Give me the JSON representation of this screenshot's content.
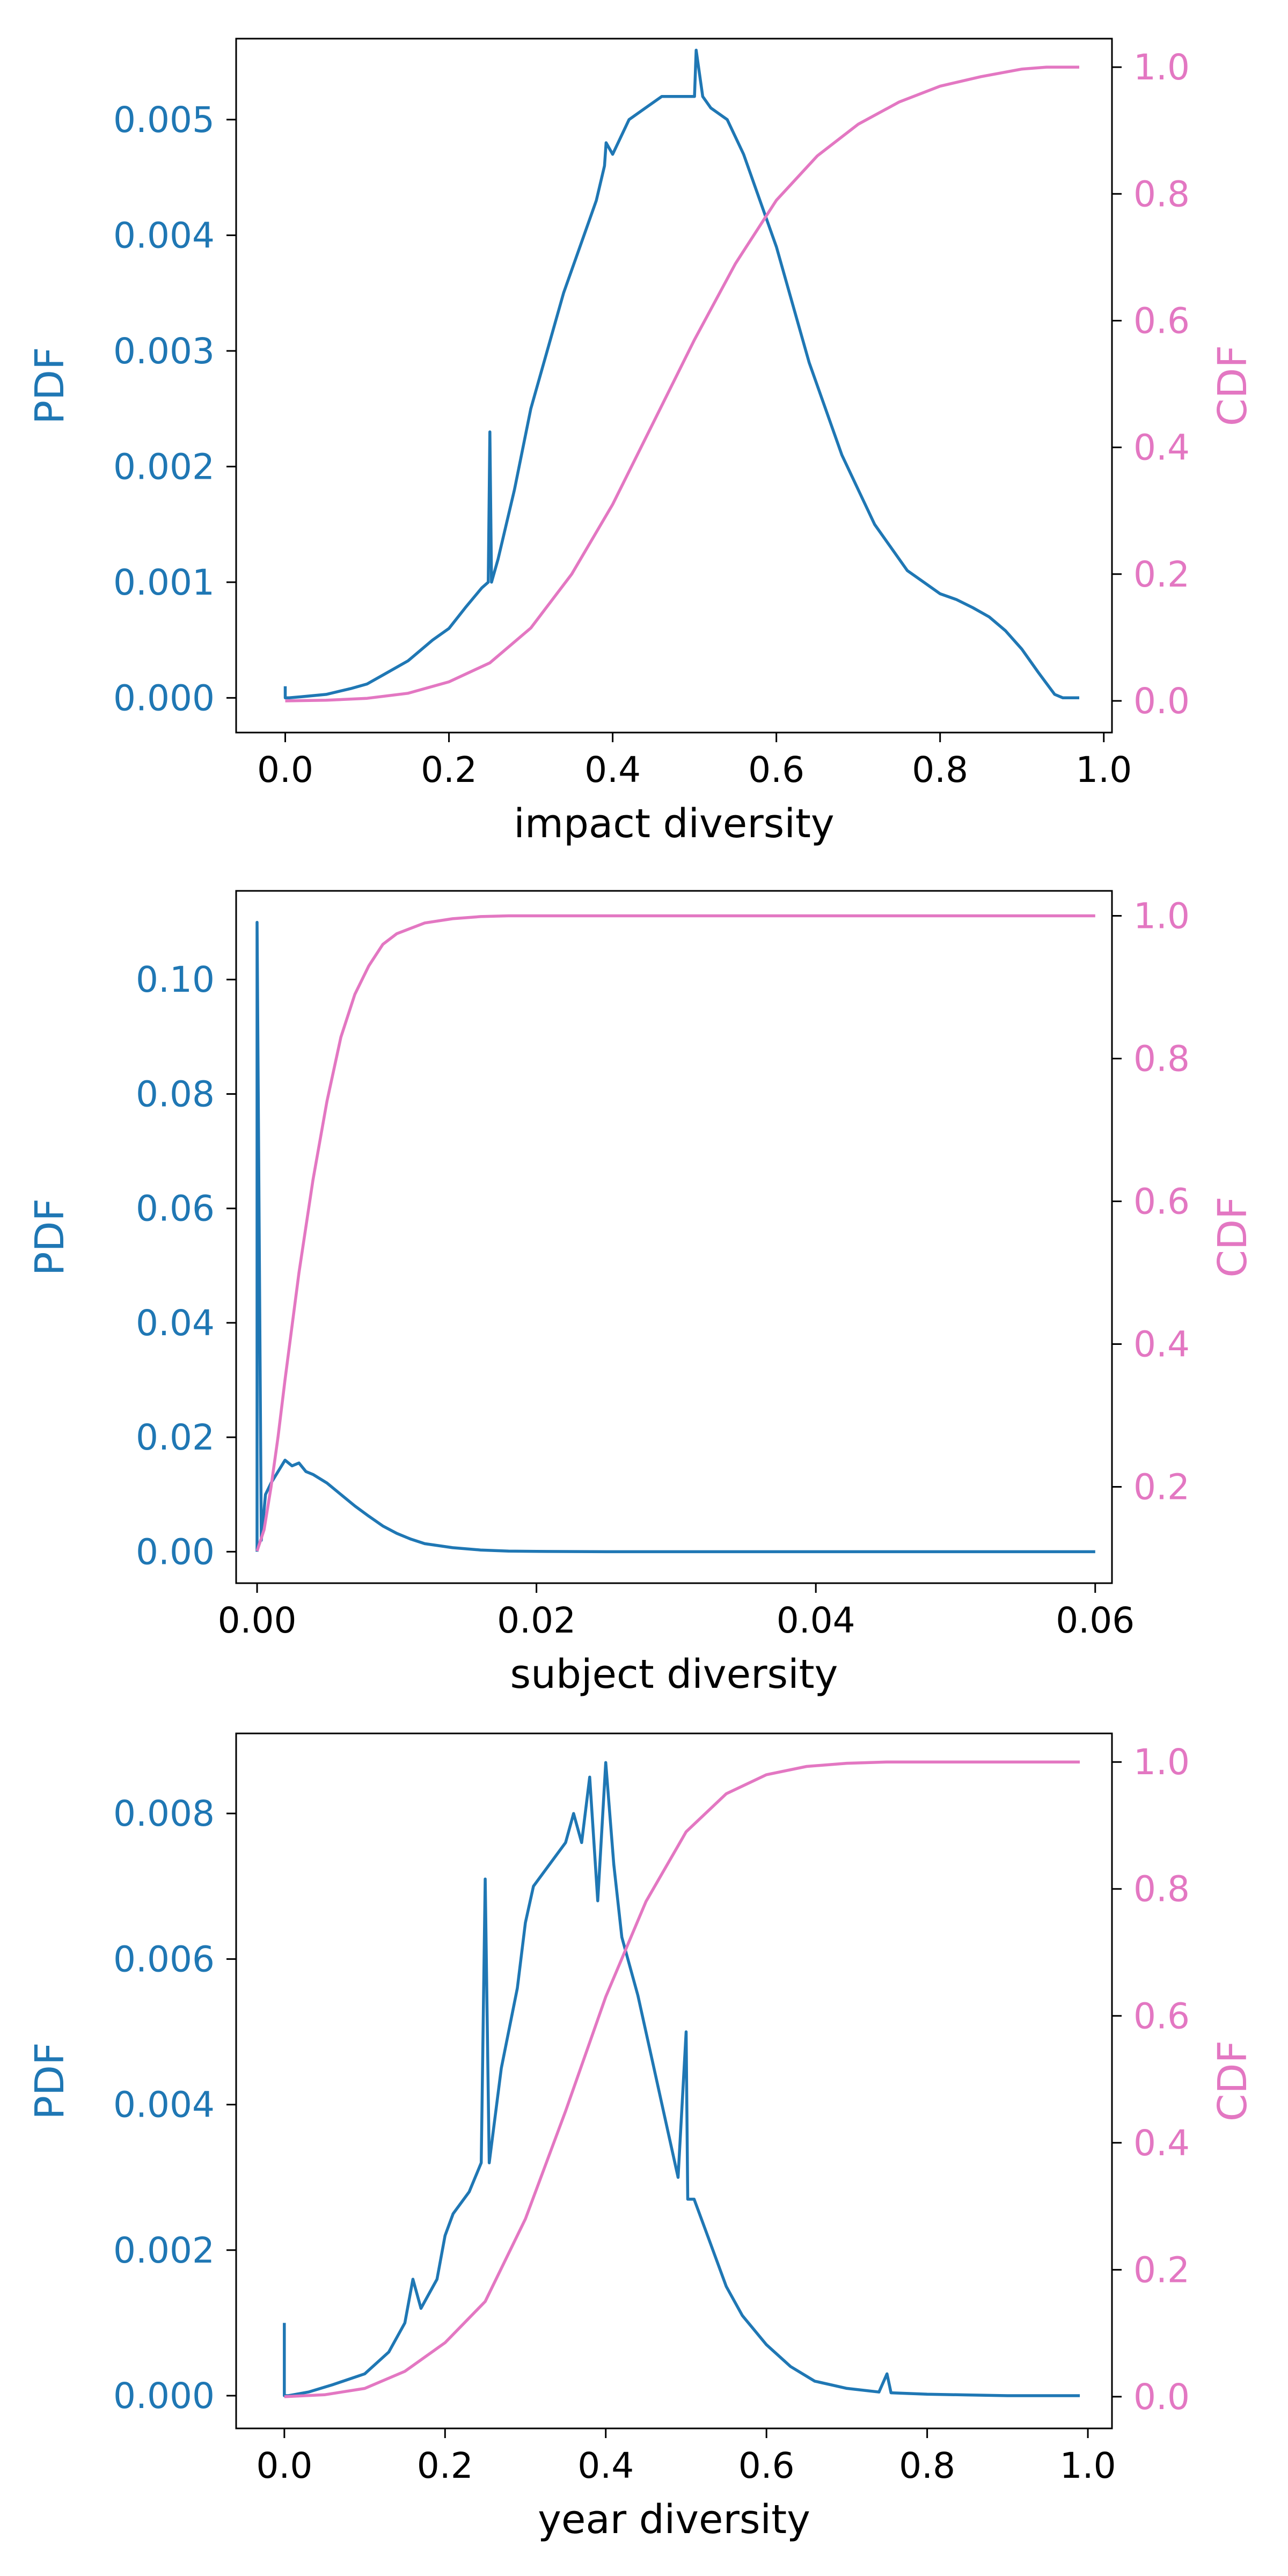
{
  "colors": {
    "pdf": "#1f77b4",
    "cdf": "#e377c2",
    "axis": "#000000"
  },
  "chart_data": [
    {
      "type": "line",
      "xlabel": "impact diversity",
      "ylabel_left": "PDF",
      "ylabel_right": "CDF",
      "xlim": [
        -0.06,
        1.01
      ],
      "ylim_left": [
        -0.0003,
        0.0057
      ],
      "ylim_right": [
        -0.05,
        1.045
      ],
      "xticks": [
        0.0,
        0.2,
        0.4,
        0.6,
        0.8,
        1.0
      ],
      "xtick_labels": [
        "0.0",
        "0.2",
        "0.4",
        "0.6",
        "0.8",
        "1.0"
      ],
      "yticks_left": [
        0.0,
        0.001,
        0.002,
        0.003,
        0.004,
        0.005
      ],
      "ytick_labels_left": [
        "0.000",
        "0.001",
        "0.002",
        "0.003",
        "0.004",
        "0.005"
      ],
      "yticks_right": [
        0.0,
        0.2,
        0.4,
        0.6,
        0.8,
        1.0
      ],
      "ytick_labels_right": [
        "0.0",
        "0.2",
        "0.4",
        "0.6",
        "0.8",
        "1.0"
      ],
      "grid": false,
      "series": [
        {
          "axis": "left",
          "x": [
            0.0,
            0.0,
            0.005,
            0.02,
            0.05,
            0.08,
            0.1,
            0.12,
            0.15,
            0.18,
            0.2,
            0.22,
            0.24,
            0.248,
            0.25,
            0.252,
            0.26,
            0.28,
            0.3,
            0.32,
            0.34,
            0.36,
            0.38,
            0.39,
            0.392,
            0.4,
            0.42,
            0.44,
            0.46,
            0.48,
            0.5,
            0.502,
            0.51,
            0.52,
            0.54,
            0.56,
            0.58,
            0.6,
            0.62,
            0.64,
            0.66,
            0.68,
            0.7,
            0.72,
            0.74,
            0.76,
            0.78,
            0.8,
            0.82,
            0.84,
            0.86,
            0.88,
            0.9,
            0.92,
            0.94,
            0.95,
            0.96,
            0.97
          ],
          "y": [
            0.0001,
            0.0,
            0.0,
            1e-05,
            3e-05,
            8e-05,
            0.00012,
            0.0002,
            0.00032,
            0.0005,
            0.0006,
            0.00078,
            0.00095,
            0.001,
            0.0023,
            0.001,
            0.0012,
            0.0018,
            0.0025,
            0.003,
            0.0035,
            0.0039,
            0.0043,
            0.0046,
            0.0048,
            0.0047,
            0.005,
            0.0051,
            0.0052,
            0.0052,
            0.0052,
            0.0056,
            0.0052,
            0.0051,
            0.005,
            0.0047,
            0.0043,
            0.0039,
            0.0034,
            0.0029,
            0.0025,
            0.0021,
            0.0018,
            0.0015,
            0.0013,
            0.0011,
            0.001,
            0.0009,
            0.00085,
            0.00078,
            0.0007,
            0.00058,
            0.00042,
            0.00022,
            3e-05,
            0.0,
            0.0,
            0.0
          ]
        },
        {
          "axis": "right",
          "x": [
            0.0,
            0.05,
            0.1,
            0.15,
            0.2,
            0.25,
            0.3,
            0.35,
            0.4,
            0.45,
            0.5,
            0.55,
            0.6,
            0.65,
            0.7,
            0.75,
            0.8,
            0.85,
            0.9,
            0.93,
            0.97
          ],
          "y": [
            0.0,
            0.001,
            0.004,
            0.012,
            0.03,
            0.06,
            0.115,
            0.2,
            0.31,
            0.44,
            0.57,
            0.69,
            0.79,
            0.86,
            0.91,
            0.945,
            0.97,
            0.985,
            0.997,
            1.0,
            1.0
          ]
        }
      ]
    },
    {
      "type": "line",
      "xlabel": "subject diversity",
      "ylabel_left": "PDF",
      "ylabel_right": "CDF",
      "xlim": [
        -0.0015,
        0.0612
      ],
      "ylim_left": [
        -0.0055,
        0.1155
      ],
      "ylim_right": [
        0.065,
        1.035
      ],
      "xticks": [
        0.0,
        0.02,
        0.04,
        0.06
      ],
      "xtick_labels": [
        "0.00",
        "0.02",
        "0.04",
        "0.06"
      ],
      "yticks_left": [
        0.0,
        0.02,
        0.04,
        0.06,
        0.08,
        0.1
      ],
      "ytick_labels_left": [
        "0.00",
        "0.02",
        "0.04",
        "0.06",
        "0.08",
        "0.10"
      ],
      "yticks_right": [
        0.2,
        0.4,
        0.6,
        0.8,
        1.0
      ],
      "ytick_labels_right": [
        "0.2",
        "0.4",
        "0.6",
        "0.8",
        "1.0"
      ],
      "grid": false,
      "series": [
        {
          "axis": "left",
          "x": [
            0.0,
            0.0,
            0.0003,
            0.0006,
            0.001,
            0.0015,
            0.002,
            0.0025,
            0.003,
            0.0035,
            0.004,
            0.005,
            0.006,
            0.007,
            0.008,
            0.009,
            0.01,
            0.011,
            0.012,
            0.014,
            0.016,
            0.018,
            0.02,
            0.025,
            0.03,
            0.04,
            0.05,
            0.06
          ],
          "y": [
            0.0,
            0.11,
            0.002,
            0.01,
            0.012,
            0.014,
            0.016,
            0.015,
            0.0155,
            0.014,
            0.0135,
            0.012,
            0.01,
            0.008,
            0.0062,
            0.0045,
            0.0032,
            0.0022,
            0.0014,
            0.0007,
            0.0003,
            0.0001,
            5e-05,
            0.0,
            0.0,
            0.0,
            0.0,
            0.0
          ]
        },
        {
          "axis": "right",
          "x": [
            0.0,
            0.0005,
            0.001,
            0.0015,
            0.002,
            0.003,
            0.004,
            0.005,
            0.006,
            0.007,
            0.008,
            0.009,
            0.01,
            0.012,
            0.014,
            0.016,
            0.018,
            0.02,
            0.025,
            0.03,
            0.04,
            0.05,
            0.06
          ],
          "y": [
            0.11,
            0.14,
            0.2,
            0.27,
            0.35,
            0.5,
            0.63,
            0.74,
            0.83,
            0.89,
            0.93,
            0.96,
            0.975,
            0.99,
            0.996,
            0.999,
            1.0,
            1.0,
            1.0,
            1.0,
            1.0,
            1.0,
            1.0
          ]
        }
      ]
    },
    {
      "type": "line",
      "xlabel": "year diversity",
      "ylabel_left": "PDF",
      "ylabel_right": "CDF",
      "xlim": [
        -0.06,
        1.03
      ],
      "ylim_left": [
        -0.00045,
        0.0091
      ],
      "ylim_right": [
        -0.05,
        1.045
      ],
      "xticks": [
        0.0,
        0.2,
        0.4,
        0.6,
        0.8,
        1.0
      ],
      "xtick_labels": [
        "0.0",
        "0.2",
        "0.4",
        "0.6",
        "0.8",
        "1.0"
      ],
      "yticks_left": [
        0.0,
        0.002,
        0.004,
        0.006,
        0.008
      ],
      "ytick_labels_left": [
        "0.000",
        "0.002",
        "0.004",
        "0.006",
        "0.008"
      ],
      "yticks_right": [
        0.0,
        0.2,
        0.4,
        0.6,
        0.8,
        1.0
      ],
      "ytick_labels_right": [
        "0.0",
        "0.2",
        "0.4",
        "0.6",
        "0.8",
        "1.0"
      ],
      "grid": false,
      "series": [
        {
          "axis": "left",
          "x": [
            0.0,
            0.0,
            0.005,
            0.03,
            0.06,
            0.1,
            0.13,
            0.15,
            0.16,
            0.17,
            0.19,
            0.2,
            0.21,
            0.23,
            0.245,
            0.25,
            0.255,
            0.27,
            0.29,
            0.3,
            0.31,
            0.33,
            0.35,
            0.36,
            0.37,
            0.38,
            0.39,
            0.4,
            0.41,
            0.42,
            0.44,
            0.46,
            0.48,
            0.49,
            0.5,
            0.502,
            0.51,
            0.53,
            0.55,
            0.57,
            0.6,
            0.63,
            0.66,
            0.7,
            0.74,
            0.75,
            0.755,
            0.8,
            0.85,
            0.9,
            0.95,
            0.99
          ],
          "y": [
            0.001,
            0.0,
            0.0,
            5e-05,
            0.00015,
            0.0003,
            0.0006,
            0.001,
            0.0016,
            0.0012,
            0.0016,
            0.0022,
            0.0025,
            0.0028,
            0.0032,
            0.0071,
            0.0032,
            0.0045,
            0.0056,
            0.0065,
            0.007,
            0.0073,
            0.0076,
            0.008,
            0.0076,
            0.0085,
            0.0068,
            0.0087,
            0.0073,
            0.0063,
            0.0055,
            0.0045,
            0.0035,
            0.003,
            0.005,
            0.0027,
            0.0027,
            0.0021,
            0.0015,
            0.0011,
            0.0007,
            0.0004,
            0.0002,
            0.0001,
            5e-05,
            0.0003,
            4e-05,
            2e-05,
            1e-05,
            0.0,
            0.0,
            0.0
          ]
        },
        {
          "axis": "right",
          "x": [
            0.0,
            0.05,
            0.1,
            0.15,
            0.2,
            0.25,
            0.3,
            0.35,
            0.4,
            0.45,
            0.5,
            0.55,
            0.6,
            0.65,
            0.7,
            0.75,
            0.8,
            0.9,
            0.99
          ],
          "y": [
            0.0,
            0.003,
            0.013,
            0.04,
            0.085,
            0.15,
            0.28,
            0.45,
            0.63,
            0.78,
            0.89,
            0.95,
            0.98,
            0.993,
            0.998,
            1.0,
            1.0,
            1.0,
            1.0
          ]
        }
      ]
    }
  ]
}
